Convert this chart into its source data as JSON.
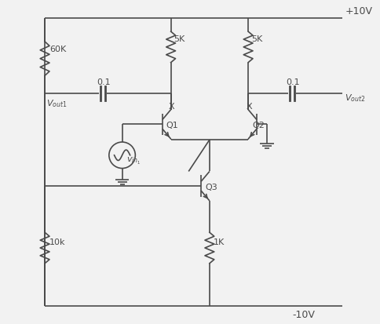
{
  "bg_color": "#f2f2f2",
  "line_color": "#4a4a4a",
  "figsize": [
    4.85,
    4.14
  ],
  "dpi": 100,
  "vcc": "+10V",
  "vee": "-10V",
  "r1_label": "60K",
  "r2_label": "5K",
  "r3_label": "5K",
  "r4_label": "10k",
  "r5_label": "1K",
  "c1_label": "0.1",
  "c2_label": "0.1",
  "q1_label": "Q1",
  "q2_label": "Q2",
  "q3_label": "Q3",
  "x_label": "X",
  "vout1": "V",
  "vout1_sub": "out1",
  "vout2": "V",
  "vout2_sub": "out2",
  "vin_label": "v",
  "vin_sub": "in",
  "vin_sub2": "1"
}
